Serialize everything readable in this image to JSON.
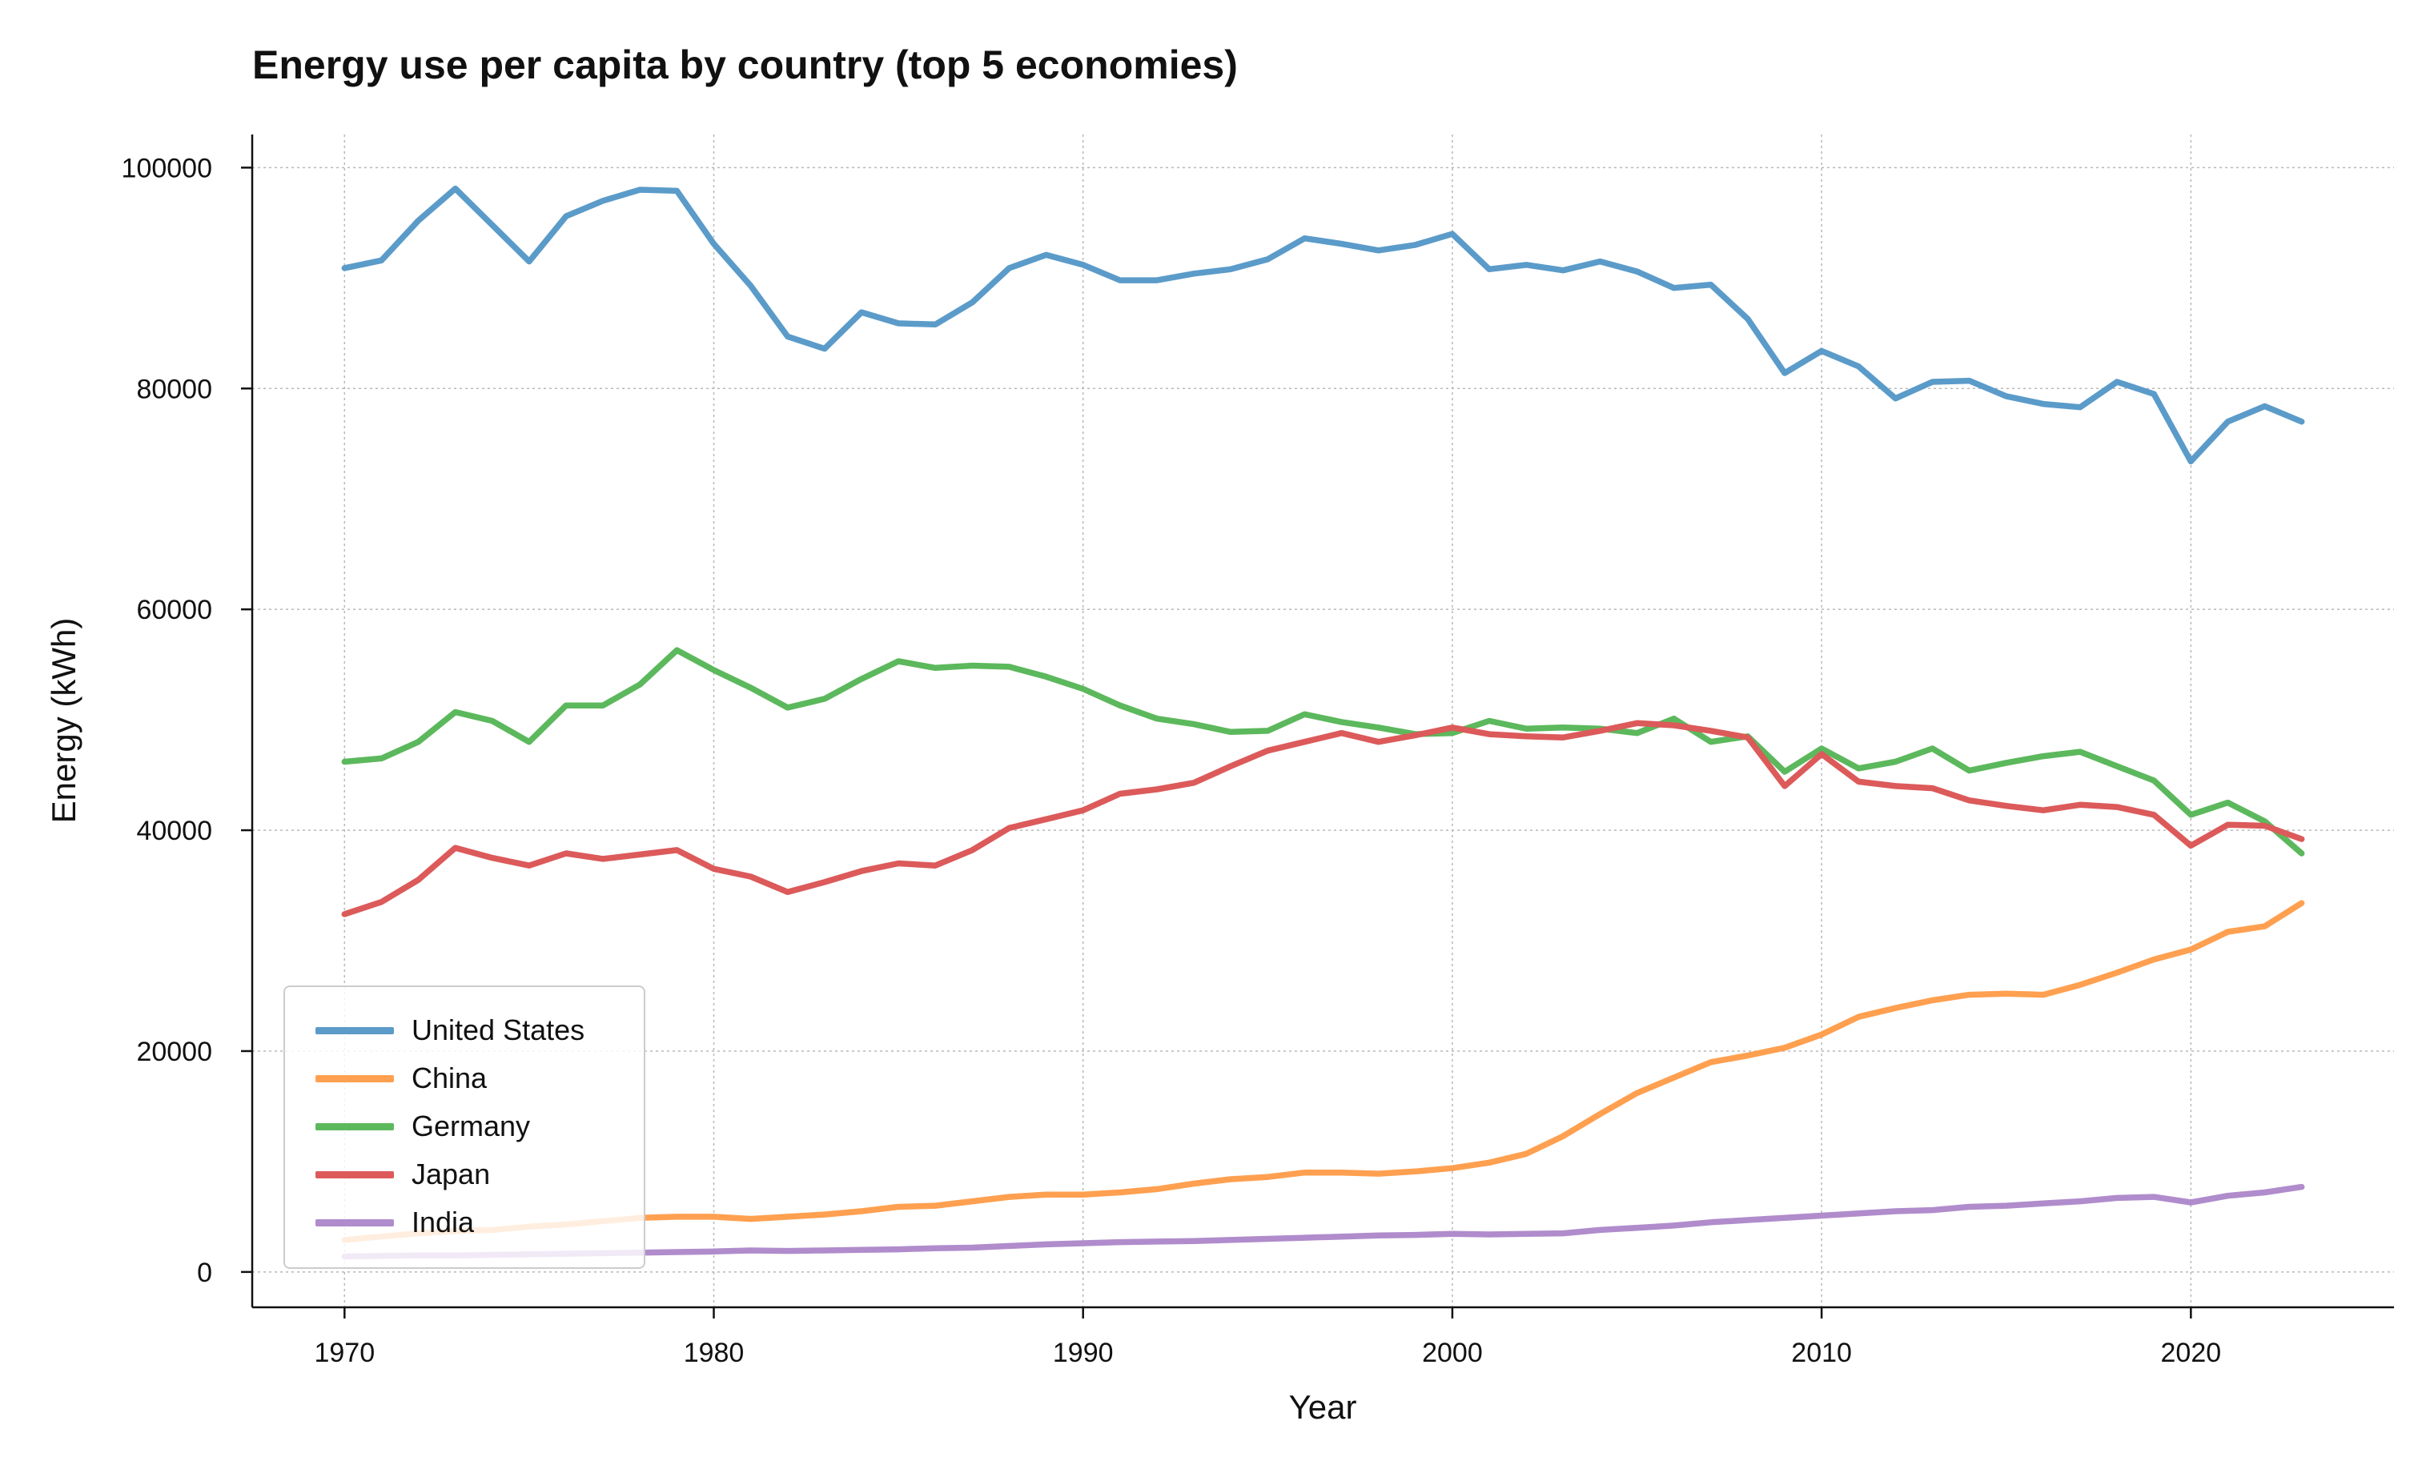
{
  "chart_data": {
    "type": "line",
    "title": "Energy use per capita by country (top 5 economies)",
    "xlabel": "Year",
    "ylabel": "Energy (kWh)",
    "xlim": [
      1967.5,
      2025.5
    ],
    "ylim": [
      -3200,
      103000
    ],
    "xticks": [
      1970,
      1980,
      1990,
      2000,
      2010,
      2020
    ],
    "yticks": [
      0,
      20000,
      40000,
      60000,
      80000,
      100000
    ],
    "grid": true,
    "legend_position": "lower-left",
    "x": [
      1970,
      1971,
      1972,
      1973,
      1974,
      1975,
      1976,
      1977,
      1978,
      1979,
      1980,
      1981,
      1982,
      1983,
      1984,
      1985,
      1986,
      1987,
      1988,
      1989,
      1990,
      1991,
      1992,
      1993,
      1994,
      1995,
      1996,
      1997,
      1998,
      1999,
      2000,
      2001,
      2002,
      2003,
      2004,
      2005,
      2006,
      2007,
      2008,
      2009,
      2010,
      2011,
      2012,
      2013,
      2014,
      2015,
      2016,
      2017,
      2018,
      2019,
      2020,
      2021,
      2022,
      2023
    ],
    "series": [
      {
        "name": "United States",
        "color": "#5b9bc9",
        "values": [
          90900,
          91600,
          95200,
          98100,
          94800,
          91500,
          95600,
          97000,
          98000,
          97900,
          93100,
          89300,
          84700,
          83600,
          86900,
          85900,
          85800,
          87800,
          90900,
          92100,
          91200,
          89800,
          89800,
          90400,
          90800,
          91700,
          93600,
          93100,
          92500,
          93000,
          94000,
          90800,
          91200,
          90700,
          91500,
          90600,
          89100,
          89400,
          86300,
          81400,
          83400,
          82000,
          79100,
          80600,
          80700,
          79300,
          78600,
          78300,
          80600,
          79500,
          73400,
          77000,
          78400,
          77000
        ]
      },
      {
        "name": "China",
        "color": "#ffa050",
        "values": [
          2900,
          3200,
          3500,
          3700,
          3800,
          4100,
          4300,
          4600,
          4900,
          5000,
          5000,
          4800,
          5000,
          5200,
          5500,
          5900,
          6000,
          6400,
          6800,
          7000,
          7000,
          7200,
          7500,
          8000,
          8400,
          8600,
          9000,
          9000,
          8900,
          9100,
          9400,
          9900,
          10700,
          12300,
          14300,
          16200,
          17600,
          19000,
          19600,
          20300,
          21500,
          23100,
          23900,
          24600,
          25100,
          25200,
          25100,
          26000,
          27100,
          28300,
          29200,
          30800,
          31300,
          33400
        ]
      },
      {
        "name": "Germany",
        "color": "#5cb85c",
        "values": [
          46200,
          46500,
          48000,
          50700,
          49900,
          48000,
          51300,
          51300,
          53200,
          56300,
          54500,
          52900,
          51100,
          51900,
          53700,
          55300,
          54700,
          54900,
          54800,
          53900,
          52800,
          51300,
          50100,
          49600,
          48900,
          49000,
          50500,
          49800,
          49300,
          48700,
          48800,
          49900,
          49200,
          49300,
          49200,
          48800,
          50100,
          48000,
          48500,
          45300,
          47400,
          45600,
          46200,
          47400,
          45400,
          46100,
          46700,
          47100,
          45800,
          44500,
          41400,
          42500,
          40800,
          37900
        ]
      },
      {
        "name": "Japan",
        "color": "#dc5a5a",
        "values": [
          32400,
          33500,
          35500,
          38400,
          37500,
          36800,
          37900,
          37400,
          37800,
          38200,
          36500,
          35800,
          34400,
          35300,
          36300,
          37000,
          36800,
          38200,
          40200,
          41000,
          41800,
          43300,
          43700,
          44300,
          45800,
          47200,
          48000,
          48800,
          48000,
          48600,
          49300,
          48700,
          48500,
          48400,
          49000,
          49700,
          49500,
          49000,
          48400,
          44000,
          46900,
          44400,
          44000,
          43800,
          42700,
          42200,
          41800,
          42300,
          42100,
          41400,
          38600,
          40500,
          40400,
          39200
        ]
      },
      {
        "name": "India",
        "color": "#b08ccc",
        "values": [
          1400,
          1450,
          1500,
          1500,
          1550,
          1600,
          1650,
          1700,
          1750,
          1800,
          1850,
          1950,
          1900,
          1950,
          2000,
          2050,
          2150,
          2200,
          2350,
          2500,
          2600,
          2700,
          2750,
          2800,
          2900,
          3000,
          3100,
          3200,
          3300,
          3350,
          3450,
          3400,
          3450,
          3500,
          3800,
          4000,
          4200,
          4500,
          4700,
          4900,
          5100,
          5300,
          5500,
          5600,
          5900,
          6000,
          6200,
          6400,
          6700,
          6800,
          6300,
          6900,
          7200,
          7700
        ]
      }
    ]
  }
}
